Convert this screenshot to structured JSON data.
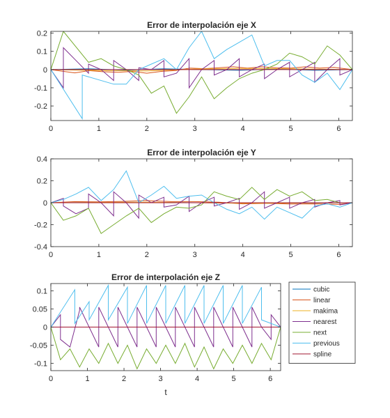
{
  "chart_data": [
    {
      "type": "line",
      "title": "Error de interpolación eje X",
      "xlabel": "",
      "ylabel": "",
      "xlim": [
        0,
        6.2832
      ],
      "ylim": [
        -0.28,
        0.21
      ],
      "xticks": [
        0,
        1,
        2,
        3,
        4,
        5,
        6
      ],
      "yticks": [
        -0.2,
        -0.1,
        0,
        0.1,
        0.2
      ],
      "ytick_labels": [
        "-0.2",
        "-0.1",
        "0",
        "0.1",
        "0.2"
      ],
      "grid": false,
      "series": [
        {
          "color": "#0072BD",
          "x": [
            0,
            0.7854,
            1.5708,
            2.3562,
            3.1416,
            3.927,
            4.7124,
            5.4978,
            6.2832
          ],
          "y": [
            0,
            0.004,
            -0.003,
            0.004,
            0,
            -0.004,
            0.003,
            -0.004,
            0
          ]
        },
        {
          "color": "#D95319",
          "x": [
            0,
            0.2,
            0.5,
            0.8,
            1.1,
            1.4,
            1.7,
            2.0,
            2.3,
            2.6,
            2.9,
            3.2,
            3.5,
            3.8,
            4.1,
            4.4,
            4.7,
            5.0,
            5.3,
            5.6,
            5.9,
            6.2832
          ],
          "y": [
            0,
            -0.008,
            -0.018,
            -0.006,
            -0.012,
            -0.015,
            -0.01,
            -0.02,
            -0.01,
            -0.005,
            0.008,
            0.005,
            0.01,
            0.015,
            0.008,
            0.015,
            0.01,
            0.008,
            0.015,
            0.008,
            0.012,
            0
          ]
        },
        {
          "color": "#EDB120",
          "x": [
            0,
            1.0,
            2.0,
            3.0,
            4.0,
            5.0,
            6.2832
          ],
          "y": [
            0,
            -0.005,
            -0.008,
            0.003,
            0.006,
            0.004,
            0
          ]
        },
        {
          "color": "#7E2F8E",
          "x": [
            0,
            0.2618,
            0.2618,
            0.5236,
            0.7854,
            0.7854,
            1.0472,
            1.309,
            1.309,
            1.5708,
            1.8326,
            1.8326,
            2.0944,
            2.3562,
            2.3562,
            2.618,
            2.8798,
            2.8798,
            3.1416,
            3.4034,
            3.4034,
            3.6652,
            3.927,
            3.927,
            4.1888,
            4.4506,
            4.4506,
            4.7124,
            4.9742,
            4.9742,
            5.236,
            5.4978,
            5.4978,
            5.7596,
            6.0214,
            6.0214,
            6.2832
          ],
          "y": [
            0,
            -0.1,
            0.12,
            0.05,
            -0.02,
            0.03,
            0,
            -0.06,
            0.05,
            0,
            -0.06,
            0.01,
            0,
            0.05,
            -0.04,
            -0.02,
            0.06,
            -0.1,
            0,
            0.05,
            -0.03,
            0,
            0.06,
            -0.04,
            0,
            0.03,
            -0.05,
            0,
            0.04,
            -0.04,
            0,
            0.04,
            -0.07,
            0,
            0.06,
            -0.03,
            0
          ]
        },
        {
          "color": "#77AC30",
          "x": [
            0,
            0.2618,
            0.7854,
            1.0472,
            1.309,
            1.5708,
            1.8326,
            2.0944,
            2.3562,
            2.618,
            2.8798,
            3.1416,
            3.4034,
            3.6652,
            3.927,
            4.1888,
            4.4506,
            4.7124,
            4.9742,
            5.236,
            5.4978,
            5.7596,
            6.0214,
            6.2832
          ],
          "y": [
            0,
            0.21,
            0.04,
            0.06,
            0.02,
            0,
            -0.03,
            -0.13,
            -0.09,
            -0.24,
            -0.15,
            -0.04,
            -0.16,
            -0.1,
            -0.05,
            -0.02,
            0,
            0.03,
            0.09,
            0.07,
            0.03,
            0.13,
            0.08,
            0
          ]
        },
        {
          "color": "#4DBEEE",
          "x": [
            0,
            0.6545,
            0.6545,
            1.309,
            1.5708,
            1.8326,
            2.0944,
            2.3562,
            2.618,
            2.8798,
            3.1416,
            3.4034,
            3.6652,
            3.927,
            4.1888,
            4.4506,
            4.7124,
            4.9742,
            5.236,
            5.4978,
            5.7596,
            6.0214,
            6.2832
          ],
          "y": [
            0,
            -0.27,
            -0.03,
            -0.08,
            -0.08,
            0,
            0.03,
            0.06,
            0,
            0.12,
            0.21,
            0.06,
            0.11,
            0.15,
            0.19,
            0.02,
            0.05,
            0.05,
            -0.03,
            -0.07,
            -0.02,
            -0.11,
            0
          ]
        },
        {
          "color": "#A2142F",
          "x": [
            0,
            6.2832
          ],
          "y": [
            0,
            0
          ]
        }
      ]
    },
    {
      "type": "line",
      "title": "Error de interpolación eje Y",
      "xlabel": "",
      "ylabel": "",
      "xlim": [
        0,
        6.2832
      ],
      "ylim": [
        -0.4,
        0.4
      ],
      "xticks": [
        0,
        1,
        2,
        3,
        4,
        5,
        6
      ],
      "yticks": [
        -0.4,
        -0.2,
        0,
        0.2,
        0.4
      ],
      "ytick_labels": [
        "-0.4",
        "-0.2",
        "0",
        "0.2",
        "0.4"
      ],
      "grid": false,
      "series": [
        {
          "color": "#0072BD",
          "x": [
            0,
            1.5708,
            3.1416,
            4.7124,
            6.2832
          ],
          "y": [
            0,
            0.004,
            0,
            -0.004,
            0
          ]
        },
        {
          "color": "#D95319",
          "x": [
            0,
            0.5,
            1.0,
            1.5,
            2.0,
            2.5,
            3.0,
            3.5,
            4.0,
            4.5,
            5.0,
            5.5,
            6.0,
            6.2832
          ],
          "y": [
            0,
            0.01,
            0.008,
            0.012,
            0.02,
            0.01,
            0.01,
            0.005,
            -0.01,
            -0.005,
            -0.012,
            -0.01,
            -0.015,
            0
          ]
        },
        {
          "color": "#EDB120",
          "x": [
            0,
            2.0,
            4.0,
            6.2832
          ],
          "y": [
            0,
            0.005,
            -0.005,
            0
          ]
        },
        {
          "color": "#7E2F8E",
          "x": [
            0,
            0.2618,
            0.2618,
            0.5236,
            0.7854,
            0.7854,
            1.0472,
            1.309,
            1.309,
            1.5708,
            1.8326,
            1.8326,
            2.0944,
            2.3562,
            2.3562,
            2.618,
            2.8798,
            2.8798,
            3.1416,
            3.4034,
            3.4034,
            3.6652,
            3.927,
            3.927,
            4.1888,
            4.4506,
            4.4506,
            4.7124,
            4.9742,
            4.9742,
            5.236,
            5.4978,
            5.4978,
            5.7596,
            6.0214,
            6.0214,
            6.2832
          ],
          "y": [
            0,
            0.04,
            -0.03,
            -0.1,
            -0.05,
            0.08,
            0,
            -0.12,
            0.1,
            0,
            -0.14,
            0.07,
            0,
            0.05,
            -0.04,
            -0.02,
            0.06,
            -0.08,
            0,
            0.05,
            -0.03,
            0,
            0.04,
            -0.06,
            0,
            0.1,
            -0.05,
            0,
            0.05,
            -0.05,
            0,
            0.03,
            -0.04,
            0,
            0.02,
            -0.02,
            0
          ]
        },
        {
          "color": "#77AC30",
          "x": [
            0,
            0.2618,
            0.5236,
            0.7854,
            1.0472,
            1.309,
            1.5708,
            1.8326,
            2.0944,
            2.3562,
            2.618,
            2.8798,
            3.1416,
            3.4034,
            3.6652,
            3.927,
            4.1888,
            4.4506,
            4.7124,
            4.9742,
            5.236,
            5.4978,
            5.7596,
            6.0214,
            6.2832
          ],
          "y": [
            0,
            -0.16,
            -0.12,
            -0.05,
            -0.28,
            -0.2,
            -0.12,
            -0.05,
            -0.18,
            -0.1,
            -0.04,
            -0.05,
            -0.02,
            0.1,
            0.06,
            0.03,
            0.14,
            0.03,
            0.12,
            0.06,
            0.1,
            0.02,
            0.03,
            0.0,
            0
          ]
        },
        {
          "color": "#4DBEEE",
          "x": [
            0,
            0.2618,
            0.5236,
            0.7854,
            1.0472,
            1.309,
            1.5708,
            1.8326,
            2.0944,
            2.3562,
            2.618,
            2.8798,
            3.1416,
            3.4034,
            3.6652,
            3.927,
            4.1888,
            4.4506,
            4.7124,
            4.9742,
            5.236,
            5.4978,
            5.7596,
            6.0214,
            6.2832
          ],
          "y": [
            0,
            0.03,
            0.08,
            0.14,
            0.02,
            0.12,
            0.29,
            0.0,
            0.07,
            0.15,
            0.04,
            0.06,
            0.07,
            0.0,
            -0.06,
            -0.1,
            -0.04,
            -0.15,
            -0.04,
            -0.09,
            -0.14,
            -0.03,
            -0.01,
            -0.04,
            0
          ]
        },
        {
          "color": "#A2142F",
          "x": [
            0,
            6.2832
          ],
          "y": [
            0,
            0
          ]
        }
      ]
    },
    {
      "type": "line",
      "title": "Error de interpolación eje Z",
      "xlabel": "t",
      "ylabel": "",
      "xlim": [
        0,
        6.2832
      ],
      "ylim": [
        -0.12,
        0.12
      ],
      "xticks": [
        0,
        1,
        2,
        3,
        4,
        5,
        6
      ],
      "yticks": [
        -0.1,
        -0.05,
        0,
        0.05,
        0.1
      ],
      "ytick_labels": [
        "-0.1",
        "-0.05",
        "0",
        "0.05",
        "0.1"
      ],
      "grid": false,
      "legend": {
        "position": "right",
        "entries": [
          {
            "label": "cubic",
            "color": "#0072BD"
          },
          {
            "label": "linear",
            "color": "#D95319"
          },
          {
            "label": "makima",
            "color": "#EDB120"
          },
          {
            "label": "nearest",
            "color": "#7E2F8E"
          },
          {
            "label": "next",
            "color": "#77AC30"
          },
          {
            "label": "previous",
            "color": "#4DBEEE"
          },
          {
            "label": "spline",
            "color": "#A2142F"
          }
        ]
      },
      "series": [
        {
          "color": "#0072BD",
          "x": [
            0,
            6.2832
          ],
          "y": [
            0,
            0
          ]
        },
        {
          "color": "#D95319",
          "x": [
            0,
            6.2832
          ],
          "y": [
            0,
            0
          ]
        },
        {
          "color": "#EDB120",
          "x": [
            0,
            6.2832
          ],
          "y": [
            0,
            0
          ]
        },
        {
          "color": "#7E2F8E",
          "x": [
            0,
            0.2618,
            0.2618,
            0.5236,
            0.7854,
            0.7854,
            1.0472,
            1.309,
            1.309,
            1.5708,
            1.8326,
            1.8326,
            2.0944,
            2.3562,
            2.3562,
            2.618,
            2.8798,
            2.8798,
            3.1416,
            3.4034,
            3.4034,
            3.6652,
            3.927,
            3.927,
            4.1888,
            4.4506,
            4.4506,
            4.7124,
            4.9742,
            4.9742,
            5.236,
            5.4978,
            5.4978,
            5.7596,
            6.0214,
            6.0214,
            6.2832
          ],
          "y": [
            0,
            0.034,
            -0.034,
            -0.055,
            0.046,
            0.055,
            0,
            -0.055,
            0.055,
            0,
            -0.055,
            0.055,
            0,
            -0.055,
            0.055,
            0,
            -0.055,
            0.055,
            0,
            -0.055,
            0.055,
            0,
            -0.055,
            0.055,
            0,
            -0.055,
            0.055,
            0,
            -0.055,
            0.055,
            0,
            -0.055,
            0.055,
            0,
            -0.034,
            0.034,
            0
          ]
        },
        {
          "color": "#77AC30",
          "x": [
            0,
            0.2618,
            0.5236,
            0.5236,
            0.7854,
            1.0472,
            1.0472,
            1.309,
            1.5708,
            1.5708,
            1.8326,
            2.0944,
            2.0944,
            2.3562,
            2.618,
            2.618,
            2.8798,
            3.1416,
            3.1416,
            3.4034,
            3.6652,
            3.6652,
            3.927,
            4.1888,
            4.1888,
            4.4506,
            4.7124,
            4.7124,
            4.9742,
            5.236,
            5.236,
            5.4978,
            5.7596,
            5.7596,
            6.0214,
            6.2832
          ],
          "y": [
            0,
            -0.09,
            -0.06,
            -0.06,
            -0.11,
            -0.06,
            -0.06,
            -0.1,
            -0.045,
            -0.045,
            -0.1,
            -0.05,
            -0.05,
            -0.115,
            -0.06,
            -0.06,
            -0.1,
            -0.05,
            -0.05,
            -0.1,
            -0.045,
            -0.045,
            -0.11,
            -0.055,
            -0.055,
            -0.115,
            -0.06,
            -0.06,
            -0.1,
            -0.05,
            -0.05,
            -0.1,
            -0.045,
            -0.045,
            -0.09,
            0
          ]
        },
        {
          "color": "#4DBEEE",
          "x": [
            0,
            0.6545,
            0.6545,
            1.0472,
            1.0472,
            1.5708,
            1.5708,
            2.0944,
            2.0944,
            2.618,
            2.618,
            3.1416,
            3.1416,
            3.6652,
            3.6652,
            4.1888,
            4.1888,
            4.7124,
            4.7124,
            5.236,
            5.236,
            5.7596,
            5.7596,
            6.2832
          ],
          "y": [
            0,
            0.103,
            0.01,
            0.07,
            0.02,
            0.115,
            0.02,
            0.11,
            0.01,
            0.115,
            0.01,
            0.115,
            0.01,
            0.115,
            0.01,
            0.115,
            0.01,
            0.115,
            0.01,
            0.115,
            0.01,
            0.11,
            0.02,
            0
          ]
        },
        {
          "color": "#A2142F",
          "x": [
            0,
            6.2832
          ],
          "y": [
            0,
            0
          ]
        }
      ]
    }
  ]
}
